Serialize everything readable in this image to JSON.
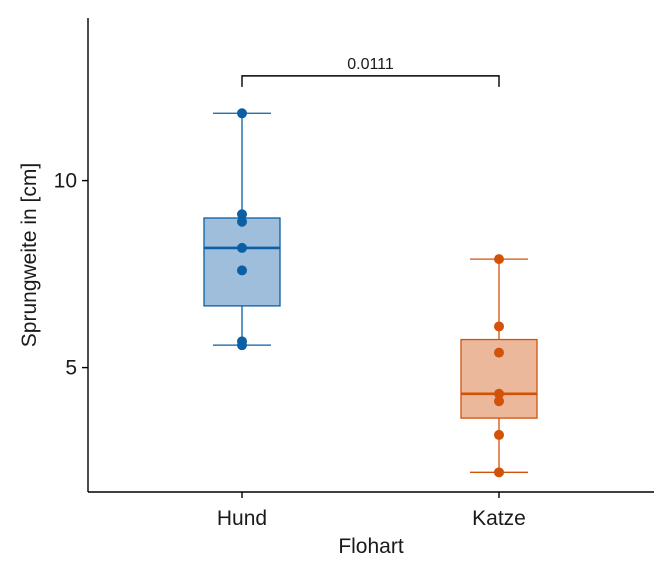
{
  "chart_data": {
    "type": "boxplot",
    "title": "",
    "xlabel": "Flohart",
    "ylabel": "Sprungweite in [cm]",
    "ylim": [
      1.7,
      14.3
    ],
    "yticks": [
      5,
      10
    ],
    "categories": [
      "Hund",
      "Katze"
    ],
    "colors": {
      "Hund": "#0b5fa5",
      "Katze": "#d2520a"
    },
    "fills": {
      "Hund": "#9fbedc",
      "Katze": "#ebb89b"
    },
    "boxes": [
      {
        "category": "Hund",
        "min": 5.6,
        "q1": 6.65,
        "median": 8.2,
        "q3": 9.0,
        "max": 11.8,
        "points": [
          11.8,
          9.1,
          8.9,
          8.2,
          7.6,
          5.7,
          5.6
        ]
      },
      {
        "category": "Katze",
        "min": 2.2,
        "q1": 3.65,
        "median": 4.3,
        "q3": 5.75,
        "max": 7.9,
        "points": [
          7.9,
          6.1,
          5.4,
          4.3,
          4.1,
          3.2,
          2.2
        ]
      }
    ],
    "significance": {
      "from": "Hund",
      "to": "Katze",
      "y": 12.8,
      "label": "0.0111"
    },
    "grid": false,
    "legend": "none"
  }
}
